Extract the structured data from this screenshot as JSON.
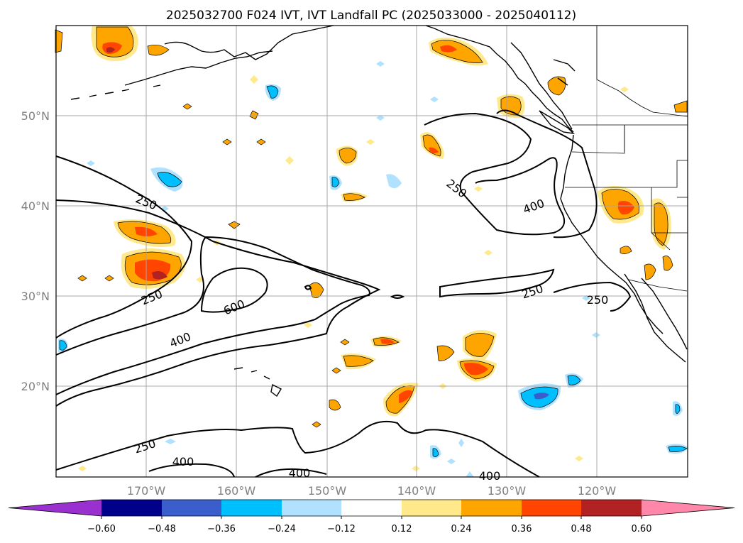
{
  "title": "2025032700 F024 IVT, IVT Landfall PC (2025033000 - 2025040112)",
  "lat_labels": [
    "50°N",
    "40°N",
    "30°N",
    "20°N"
  ],
  "lon_labels": [
    "170°W",
    "160°W",
    "150°W",
    "140°W",
    "130°W",
    "120°W"
  ],
  "contour_labels": [
    "250",
    "250",
    "600",
    "400",
    "250",
    "400",
    "250",
    "250",
    "250",
    "400",
    "400",
    "400"
  ],
  "colorbar": {
    "ticks": [
      "−0.60",
      "−0.48",
      "−0.36",
      "−0.24",
      "−0.12",
      "0.12",
      "0.24",
      "0.36",
      "0.48",
      "0.60"
    ],
    "colors": [
      "#9b30d0",
      "#00008b",
      "#3a5fcd",
      "#00bfff",
      "#b0e2ff",
      "#ffffff",
      "#ffe98a",
      "#ffa500",
      "#ff4500",
      "#b22222",
      "#ff88aa"
    ]
  },
  "palette": {
    "light_yellow": "#ffe98a",
    "orange": "#ffa500",
    "red_orange": "#ff4500",
    "dark_red": "#b22222",
    "light_blue": "#b0e2ff",
    "deep_sky_blue": "#00bfff",
    "royal_blue": "#3a5fcd"
  }
}
